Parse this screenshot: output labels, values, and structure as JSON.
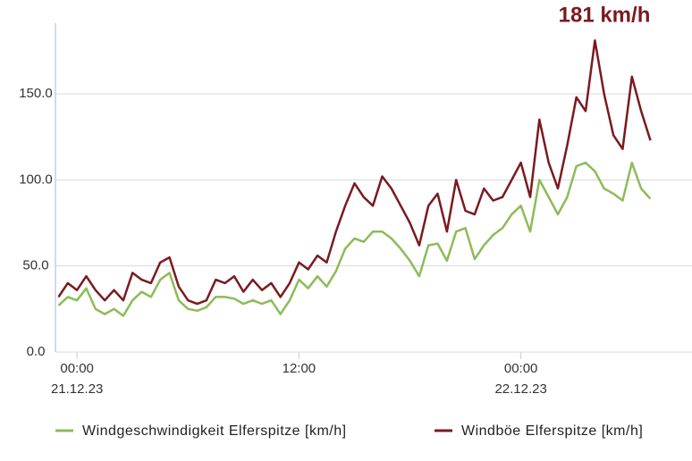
{
  "chart_data": {
    "type": "line",
    "annotation": "181 km/h",
    "x": [
      "2023-12-20T23:00",
      "2023-12-20T23:30",
      "2023-12-21T00:00",
      "2023-12-21T00:30",
      "2023-12-21T01:00",
      "2023-12-21T01:30",
      "2023-12-21T02:00",
      "2023-12-21T02:30",
      "2023-12-21T03:00",
      "2023-12-21T03:30",
      "2023-12-21T04:00",
      "2023-12-21T04:30",
      "2023-12-21T05:00",
      "2023-12-21T05:30",
      "2023-12-21T06:00",
      "2023-12-21T06:30",
      "2023-12-21T07:00",
      "2023-12-21T07:30",
      "2023-12-21T08:00",
      "2023-12-21T08:30",
      "2023-12-21T09:00",
      "2023-12-21T09:30",
      "2023-12-21T10:00",
      "2023-12-21T10:30",
      "2023-12-21T11:00",
      "2023-12-21T11:30",
      "2023-12-21T12:00",
      "2023-12-21T12:30",
      "2023-12-21T13:00",
      "2023-12-21T13:30",
      "2023-12-21T14:00",
      "2023-12-21T14:30",
      "2023-12-21T15:00",
      "2023-12-21T15:30",
      "2023-12-21T16:00",
      "2023-12-21T16:30",
      "2023-12-21T17:00",
      "2023-12-21T17:30",
      "2023-12-21T18:00",
      "2023-12-21T18:30",
      "2023-12-21T19:00",
      "2023-12-21T19:30",
      "2023-12-21T20:00",
      "2023-12-21T20:30",
      "2023-12-21T21:00",
      "2023-12-21T21:30",
      "2023-12-21T22:00",
      "2023-12-21T22:30",
      "2023-12-21T23:00",
      "2023-12-21T23:30",
      "2023-12-22T00:00",
      "2023-12-22T00:30",
      "2023-12-22T01:00",
      "2023-12-22T01:30",
      "2023-12-22T02:00",
      "2023-12-22T02:30",
      "2023-12-22T03:00",
      "2023-12-22T03:30",
      "2023-12-22T04:00",
      "2023-12-22T04:30",
      "2023-12-22T05:00",
      "2023-12-22T05:30",
      "2023-12-22T06:00",
      "2023-12-22T06:30",
      "2023-12-22T07:00"
    ],
    "series": [
      {
        "name": "Windgeschwindigkeit Elferspitze [km/h]",
        "color": "#8dbb5a",
        "values": [
          27,
          32,
          30,
          37,
          25,
          22,
          25,
          21,
          30,
          35,
          32,
          42,
          46,
          30,
          25,
          24,
          26,
          32,
          32,
          31,
          28,
          30,
          28,
          30,
          22,
          30,
          42,
          37,
          44,
          38,
          47,
          60,
          66,
          64,
          70,
          70,
          66,
          60,
          53,
          44,
          62,
          63,
          53,
          70,
          72,
          54,
          62,
          68,
          72,
          80,
          85,
          70,
          100,
          90,
          80,
          90,
          108,
          110,
          105,
          95,
          92,
          88,
          110,
          95,
          89
        ]
      },
      {
        "name": "Windböe Elferspitze [km/h]",
        "color": "#7a1a20",
        "values": [
          32,
          40,
          36,
          44,
          36,
          30,
          36,
          30,
          46,
          42,
          40,
          52,
          55,
          38,
          30,
          28,
          30,
          42,
          40,
          44,
          35,
          42,
          36,
          40,
          32,
          40,
          52,
          48,
          56,
          52,
          70,
          85,
          98,
          90,
          85,
          102,
          95,
          85,
          75,
          62,
          85,
          92,
          70,
          100,
          82,
          80,
          95,
          88,
          90,
          100,
          110,
          90,
          135,
          110,
          95,
          120,
          148,
          140,
          181,
          150,
          126,
          118,
          160,
          140,
          123
        ]
      }
    ],
    "xlim": [
      "2023-12-20T22:50",
      "2023-12-22T09:15"
    ],
    "xticks": [
      {
        "value": "2023-12-21T00:00",
        "label": [
          "00:00",
          "21.12.23"
        ]
      },
      {
        "value": "2023-12-21T12:00",
        "label": [
          "12:00"
        ]
      },
      {
        "value": "2023-12-22T00:00",
        "label": [
          "00:00",
          "22.12.23"
        ]
      }
    ],
    "ylim": [
      0,
      190
    ],
    "yticks": [
      {
        "value": 0,
        "label": "0.0"
      },
      {
        "value": 50,
        "label": "50.0"
      },
      {
        "value": 100,
        "label": "100.0"
      },
      {
        "value": 150,
        "label": "150.0"
      }
    ],
    "grid": true
  }
}
